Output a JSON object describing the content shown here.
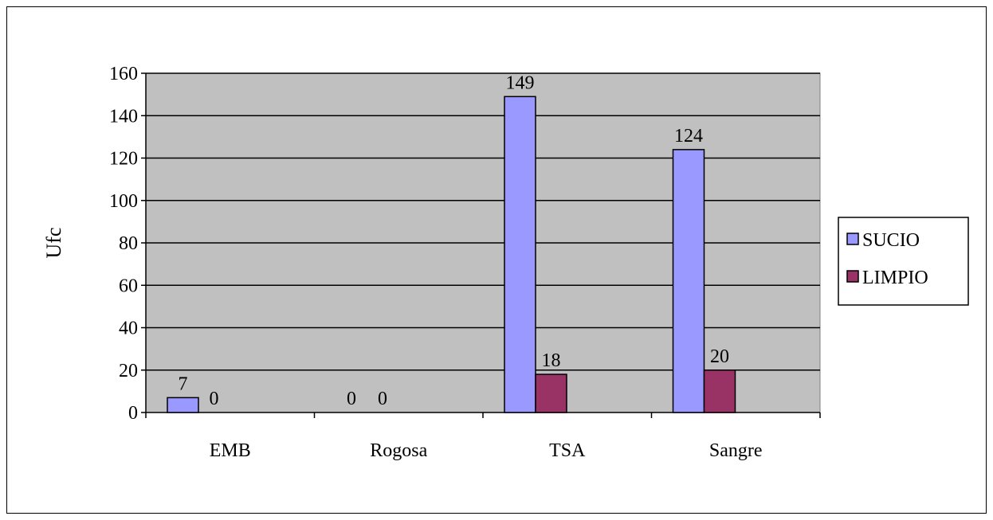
{
  "chart_data": {
    "type": "bar",
    "categories": [
      "EMB",
      "Rogosa",
      "TSA",
      "Sangre"
    ],
    "series": [
      {
        "name": "SUCIO",
        "values": [
          7,
          0,
          149,
          124
        ],
        "labels": [
          "7",
          "0",
          "149",
          "124"
        ],
        "color": "#9999FF"
      },
      {
        "name": "LIMPIO",
        "values": [
          0,
          0,
          18,
          20
        ],
        "labels": [
          "0",
          "0",
          "18",
          "20"
        ],
        "color": "#993366"
      }
    ],
    "ylabel": "Ufc",
    "xlabel": "",
    "ylim": [
      0,
      160
    ],
    "yticks": [
      "0",
      "20",
      "40",
      "60",
      "80",
      "100",
      "120",
      "140",
      "160"
    ],
    "grid": true,
    "plot_background": "#C0C0C0",
    "legend_position": "right"
  }
}
